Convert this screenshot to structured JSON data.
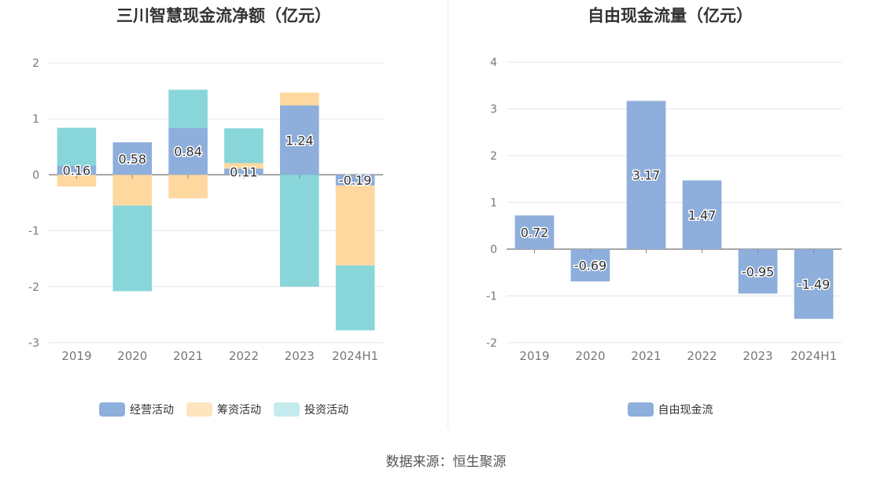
{
  "source": "数据来源：恒生聚源",
  "chart_data": [
    {
      "type": "bar",
      "stacked": true,
      "title": "三川智慧现金流净额（亿元）",
      "categories": [
        "2019",
        "2020",
        "2021",
        "2022",
        "2023",
        "2024H1"
      ],
      "ylim": [
        -3,
        2
      ],
      "yticks": [
        -3,
        -2,
        -1,
        0,
        1,
        2
      ],
      "grid": true,
      "legend_position": "bottom",
      "series": [
        {
          "name": "经营活动",
          "color": "#8eaedb",
          "values": [
            0.16,
            0.58,
            0.84,
            0.11,
            1.24,
            -0.19
          ]
        },
        {
          "name": "筹资活动",
          "color": "#fed89e",
          "values": [
            -0.21,
            -0.55,
            -0.42,
            0.1,
            0.23,
            -1.43
          ]
        },
        {
          "name": "投资活动",
          "color": "#88d6da",
          "values": [
            0.68,
            -1.53,
            0.68,
            0.62,
            -2.0,
            -1.16
          ]
        }
      ],
      "data_labels": [
        "0.16",
        "0.58",
        "0.84",
        "0.11",
        "1.24",
        "-0.19"
      ]
    },
    {
      "type": "bar",
      "title": "自由现金流量（亿元）",
      "categories": [
        "2019",
        "2020",
        "2021",
        "2022",
        "2023",
        "2024H1"
      ],
      "ylim": [
        -2,
        4
      ],
      "yticks": [
        -2,
        -1,
        0,
        1,
        2,
        3,
        4
      ],
      "grid": true,
      "legend_position": "bottom",
      "series": [
        {
          "name": "自由现金流",
          "color": "#8eaedb",
          "values": [
            0.72,
            -0.69,
            3.17,
            1.47,
            -0.95,
            -1.49
          ]
        }
      ],
      "data_labels": [
        "0.72",
        "-0.69",
        "3.17",
        "1.47",
        "-0.95",
        "-1.49"
      ]
    }
  ]
}
